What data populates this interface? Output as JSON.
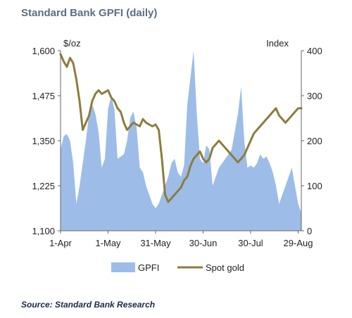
{
  "title": "Standard Bank GPFI (daily)",
  "source": "Source: Standard Bank Research",
  "colors": {
    "gpfi_fill": "#9dbde8",
    "spot_gold_line": "#8c7d3c",
    "axis": "#666666",
    "title": "#5a6e84"
  },
  "chart_data": {
    "type": "line",
    "title": "Standard Bank GPFI (daily)",
    "left_axis": {
      "unit_label": "$/oz",
      "range": [
        1100,
        1600
      ],
      "ticks": [
        "1,100",
        "1,225",
        "1,350",
        "1,475",
        "1,600"
      ],
      "tick_values": [
        1100,
        1225,
        1350,
        1475,
        1600
      ]
    },
    "right_axis": {
      "unit_label": "Index",
      "range": [
        0,
        400
      ],
      "ticks": [
        "0",
        "100",
        "200",
        "300",
        "400"
      ],
      "tick_values": [
        0,
        100,
        200,
        300,
        400
      ]
    },
    "x_ticks": [
      "1-Apr",
      "1-May",
      "31-May",
      "30-Jun",
      "30-Jul",
      "29-Aug"
    ],
    "x_tick_days": [
      0,
      30,
      60,
      90,
      120,
      150
    ],
    "x_range_days": [
      0,
      152
    ],
    "grid": false,
    "legend": [
      "GPFI",
      "Spot gold"
    ],
    "legend_position": "bottom",
    "series": [
      {
        "name": "GPFI",
        "axis": "right",
        "kind": "area",
        "x": [
          0,
          2,
          4,
          6,
          8,
          10,
          12,
          14,
          16,
          18,
          20,
          22,
          24,
          26,
          28,
          30,
          32,
          34,
          36,
          38,
          40,
          42,
          44,
          46,
          48,
          50,
          52,
          54,
          56,
          58,
          60,
          62,
          64,
          66,
          68,
          70,
          72,
          74,
          76,
          78,
          80,
          82,
          84,
          86,
          88,
          90,
          92,
          94,
          96,
          98,
          100,
          102,
          104,
          106,
          108,
          110,
          112,
          114,
          116,
          118,
          120,
          122,
          124,
          126,
          128,
          130,
          132,
          134,
          136,
          138,
          140,
          142,
          144,
          146,
          148,
          150,
          152
        ],
        "values": [
          180,
          210,
          215,
          200,
          150,
          60,
          100,
          150,
          200,
          260,
          280,
          260,
          220,
          140,
          160,
          270,
          300,
          270,
          160,
          165,
          170,
          200,
          250,
          265,
          230,
          140,
          130,
          100,
          80,
          60,
          50,
          60,
          80,
          100,
          120,
          150,
          160,
          130,
          120,
          145,
          280,
          340,
          400,
          260,
          160,
          150,
          190,
          180,
          100,
          120,
          140,
          150,
          160,
          170,
          180,
          220,
          260,
          320,
          200,
          140,
          145,
          140,
          150,
          170,
          160,
          165,
          150,
          130,
          100,
          60,
          80,
          100,
          120,
          140,
          100,
          60,
          40
        ]
      },
      {
        "name": "Spot gold",
        "axis": "left",
        "kind": "line",
        "x": [
          0,
          2,
          4,
          6,
          8,
          10,
          12,
          14,
          16,
          18,
          20,
          22,
          24,
          26,
          28,
          30,
          32,
          34,
          36,
          38,
          40,
          42,
          44,
          46,
          48,
          50,
          52,
          54,
          56,
          58,
          60,
          62,
          64,
          66,
          68,
          70,
          72,
          74,
          76,
          78,
          80,
          82,
          84,
          86,
          88,
          90,
          92,
          94,
          96,
          98,
          100,
          102,
          104,
          106,
          108,
          110,
          112,
          114,
          116,
          118,
          120,
          122,
          124,
          126,
          128,
          130,
          132,
          134,
          136,
          138,
          140,
          142,
          144,
          146,
          148,
          150,
          152
        ],
        "values": [
          1590,
          1570,
          1555,
          1580,
          1565,
          1520,
          1460,
          1380,
          1400,
          1420,
          1460,
          1480,
          1490,
          1480,
          1485,
          1490,
          1470,
          1460,
          1440,
          1430,
          1400,
          1380,
          1390,
          1400,
          1395,
          1390,
          1410,
          1400,
          1395,
          1390,
          1395,
          1380,
          1300,
          1200,
          1180,
          1190,
          1200,
          1210,
          1220,
          1240,
          1250,
          1280,
          1300,
          1310,
          1320,
          1300,
          1290,
          1300,
          1330,
          1340,
          1350,
          1340,
          1330,
          1320,
          1310,
          1300,
          1290,
          1300,
          1310,
          1330,
          1350,
          1370,
          1380,
          1390,
          1400,
          1410,
          1420,
          1430,
          1440,
          1420,
          1410,
          1400,
          1410,
          1420,
          1430,
          1440,
          1440
        ]
      }
    ]
  }
}
